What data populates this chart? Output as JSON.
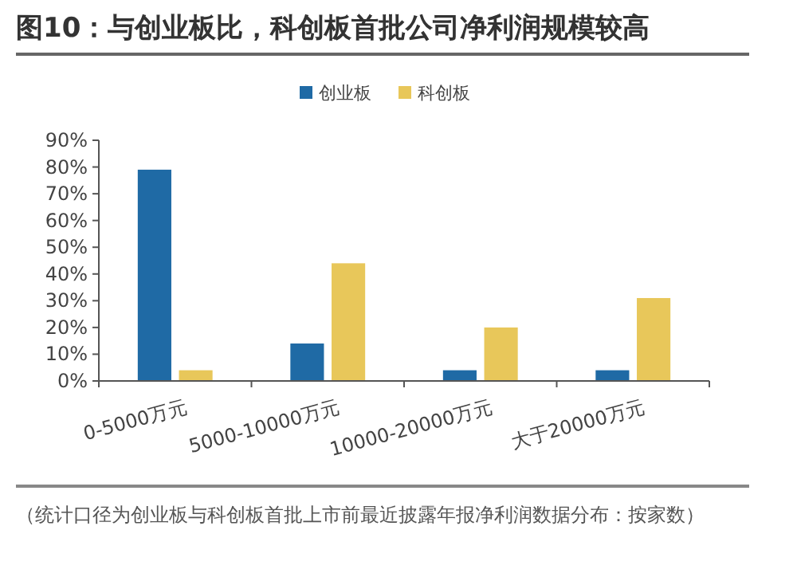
{
  "chart_data": {
    "type": "bar",
    "title": "图10：与创业板比，科创板首批公司净利润规模较高",
    "categories": [
      "0-5000万元",
      "5000-10000万元",
      "10000-20000万元",
      "大于20000万元"
    ],
    "series": [
      {
        "name": "创业板",
        "color": "#1f6aa5",
        "values": [
          79,
          14,
          4,
          4
        ]
      },
      {
        "name": "科创板",
        "color": "#e8c75a",
        "values": [
          4,
          44,
          20,
          31
        ]
      }
    ],
    "ylim": [
      0,
      90
    ],
    "yticks": [
      {
        "value": 0,
        "label": "0%"
      },
      {
        "value": 10,
        "label": "10%"
      },
      {
        "value": 20,
        "label": "20%"
      },
      {
        "value": 30,
        "label": "30%"
      },
      {
        "value": 40,
        "label": "40%"
      },
      {
        "value": 50,
        "label": "50%"
      },
      {
        "value": 60,
        "label": "60%"
      },
      {
        "value": 70,
        "label": "70%"
      },
      {
        "value": 80,
        "label": "80%"
      },
      {
        "value": 90,
        "label": "90%"
      }
    ],
    "grid": false,
    "legend": "top",
    "annotations": [
      "（统计口径为创业板与科创板首批上市前最近披露年报净利润数据分布：按家数）"
    ]
  }
}
